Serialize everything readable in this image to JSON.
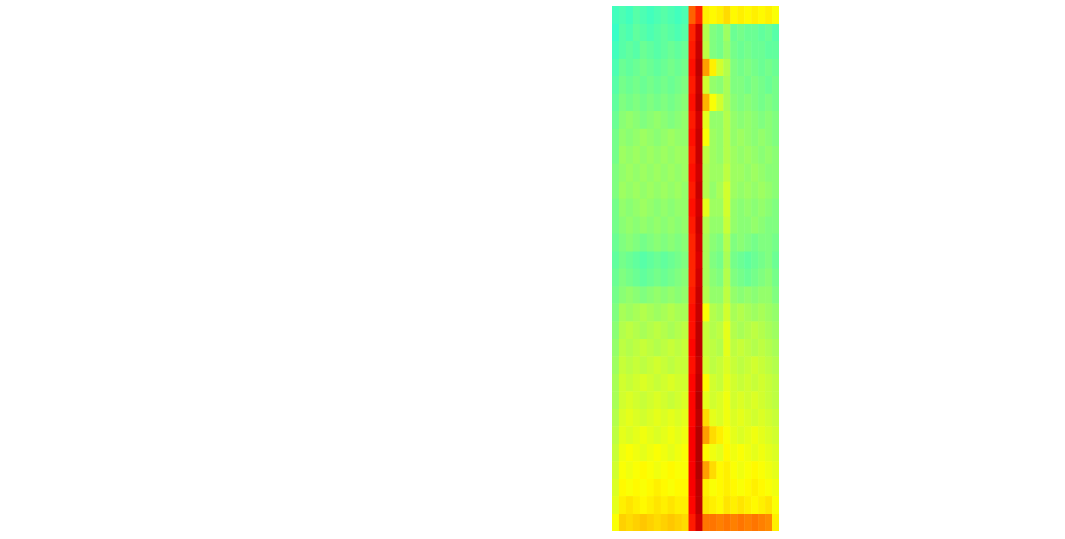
{
  "chart_data": {
    "type": "heatmap",
    "tick_labels": false,
    "zlim": [
      0,
      100
    ],
    "cells": [
      [
        44,
        45,
        44,
        46,
        45,
        44,
        45,
        46,
        45,
        44,
        45,
        78,
        84,
        64,
        63,
        64,
        66,
        63,
        64,
        63,
        64,
        63,
        64,
        62
      ],
      [
        43,
        46,
        45,
        47,
        46,
        45,
        46,
        47,
        46,
        45,
        46,
        84,
        92,
        55,
        50,
        49,
        53,
        48,
        49,
        48,
        48,
        47,
        48,
        46
      ],
      [
        44,
        46,
        47,
        46,
        48,
        47,
        46,
        47,
        48,
        47,
        48,
        85,
        93,
        56,
        50,
        49,
        52,
        49,
        48,
        49,
        48,
        48,
        47,
        47
      ],
      [
        45,
        48,
        47,
        48,
        49,
        48,
        47,
        48,
        49,
        48,
        49,
        86,
        94,
        72,
        64,
        58,
        55,
        50,
        49,
        50,
        49,
        48,
        49,
        48
      ],
      [
        46,
        49,
        48,
        49,
        48,
        49,
        48,
        49,
        48,
        49,
        50,
        85,
        93,
        58,
        52,
        51,
        54,
        50,
        50,
        49,
        50,
        49,
        48,
        49
      ],
      [
        47,
        50,
        49,
        50,
        49,
        50,
        49,
        50,
        49,
        50,
        51,
        86,
        94,
        70,
        62,
        58,
        54,
        51,
        50,
        51,
        50,
        49,
        50,
        49
      ],
      [
        48,
        51,
        52,
        51,
        50,
        51,
        52,
        51,
        50,
        51,
        52,
        85,
        92,
        60,
        52,
        52,
        55,
        52,
        51,
        52,
        51,
        50,
        51,
        50
      ],
      [
        49,
        52,
        51,
        52,
        53,
        52,
        51,
        52,
        53,
        52,
        52,
        86,
        93,
        62,
        53,
        52,
        55,
        52,
        53,
        52,
        51,
        52,
        51,
        50
      ],
      [
        49,
        53,
        52,
        53,
        52,
        53,
        52,
        53,
        52,
        53,
        53,
        85,
        93,
        56,
        53,
        52,
        55,
        53,
        52,
        53,
        52,
        51,
        52,
        51
      ],
      [
        50,
        52,
        53,
        52,
        53,
        52,
        53,
        52,
        53,
        52,
        53,
        86,
        92,
        55,
        53,
        53,
        56,
        53,
        53,
        52,
        53,
        52,
        51,
        51
      ],
      [
        50,
        53,
        52,
        53,
        52,
        53,
        52,
        53,
        52,
        53,
        52,
        85,
        93,
        55,
        52,
        54,
        58,
        53,
        52,
        53,
        52,
        53,
        52,
        51
      ],
      [
        49,
        52,
        51,
        52,
        53,
        52,
        51,
        52,
        51,
        52,
        52,
        86,
        92,
        60,
        53,
        53,
        58,
        52,
        51,
        52,
        51,
        52,
        51,
        50
      ],
      [
        49,
        51,
        52,
        51,
        52,
        51,
        52,
        51,
        52,
        51,
        52,
        85,
        93,
        55,
        52,
        52,
        57,
        52,
        51,
        51,
        52,
        51,
        50,
        50
      ],
      [
        48,
        50,
        51,
        50,
        49,
        50,
        51,
        50,
        51,
        50,
        51,
        84,
        92,
        54,
        51,
        50,
        55,
        50,
        51,
        50,
        49,
        50,
        50,
        49
      ],
      [
        47,
        49,
        48,
        47,
        46,
        47,
        48,
        47,
        48,
        49,
        50,
        84,
        91,
        54,
        50,
        49,
        54,
        49,
        48,
        47,
        48,
        49,
        50,
        48
      ],
      [
        48,
        50,
        49,
        48,
        47,
        48,
        49,
        48,
        49,
        50,
        51,
        84,
        92,
        54,
        51,
        50,
        55,
        50,
        49,
        48,
        49,
        50,
        51,
        49
      ],
      [
        49,
        51,
        52,
        51,
        50,
        51,
        52,
        51,
        52,
        51,
        52,
        85,
        93,
        55,
        52,
        52,
        56,
        52,
        51,
        52,
        51,
        52,
        52,
        50
      ],
      [
        50,
        54,
        53,
        54,
        55,
        54,
        53,
        54,
        55,
        54,
        54,
        86,
        93,
        62,
        55,
        54,
        58,
        54,
        55,
        54,
        53,
        54,
        53,
        52
      ],
      [
        51,
        55,
        56,
        55,
        54,
        55,
        56,
        55,
        54,
        55,
        56,
        86,
        94,
        57,
        55,
        56,
        60,
        55,
        54,
        55,
        56,
        55,
        54,
        53
      ],
      [
        52,
        56,
        55,
        56,
        57,
        56,
        55,
        56,
        57,
        56,
        57,
        87,
        94,
        57,
        56,
        55,
        60,
        56,
        57,
        56,
        55,
        56,
        55,
        54
      ],
      [
        53,
        57,
        56,
        57,
        56,
        57,
        58,
        57,
        56,
        57,
        57,
        86,
        93,
        58,
        56,
        57,
        59,
        57,
        56,
        57,
        58,
        57,
        56,
        55
      ],
      [
        54,
        58,
        57,
        58,
        59,
        58,
        57,
        58,
        59,
        58,
        58,
        87,
        94,
        63,
        58,
        57,
        60,
        58,
        57,
        58,
        57,
        58,
        57,
        56
      ],
      [
        54,
        58,
        59,
        58,
        57,
        58,
        59,
        58,
        57,
        58,
        59,
        87,
        95,
        60,
        58,
        59,
        61,
        58,
        59,
        58,
        59,
        58,
        57,
        56
      ],
      [
        55,
        59,
        60,
        59,
        58,
        59,
        60,
        59,
        60,
        59,
        60,
        87,
        94,
        66,
        60,
        59,
        61,
        59,
        60,
        59,
        58,
        59,
        58,
        57
      ],
      [
        56,
        60,
        59,
        60,
        61,
        60,
        59,
        60,
        61,
        60,
        61,
        88,
        95,
        72,
        66,
        64,
        62,
        60,
        59,
        60,
        61,
        60,
        59,
        58
      ],
      [
        57,
        61,
        62,
        61,
        60,
        61,
        62,
        61,
        60,
        61,
        62,
        88,
        95,
        63,
        61,
        60,
        63,
        61,
        62,
        61,
        60,
        61,
        60,
        59
      ],
      [
        58,
        62,
        61,
        62,
        63,
        62,
        61,
        62,
        63,
        62,
        62,
        88,
        95,
        72,
        66,
        63,
        64,
        62,
        61,
        62,
        63,
        62,
        61,
        60
      ],
      [
        59,
        63,
        62,
        63,
        62,
        63,
        64,
        63,
        62,
        63,
        63,
        88,
        94,
        64,
        62,
        63,
        64,
        63,
        62,
        63,
        64,
        63,
        62,
        61
      ],
      [
        60,
        64,
        65,
        64,
        63,
        64,
        65,
        64,
        65,
        64,
        64,
        87,
        94,
        65,
        64,
        63,
        65,
        64,
        65,
        64,
        63,
        64,
        65,
        62
      ],
      [
        62,
        67,
        66,
        67,
        68,
        67,
        66,
        67,
        68,
        67,
        66,
        85,
        92,
        76,
        76,
        75,
        76,
        75,
        76,
        75,
        76,
        75,
        74,
        64
      ]
    ]
  }
}
